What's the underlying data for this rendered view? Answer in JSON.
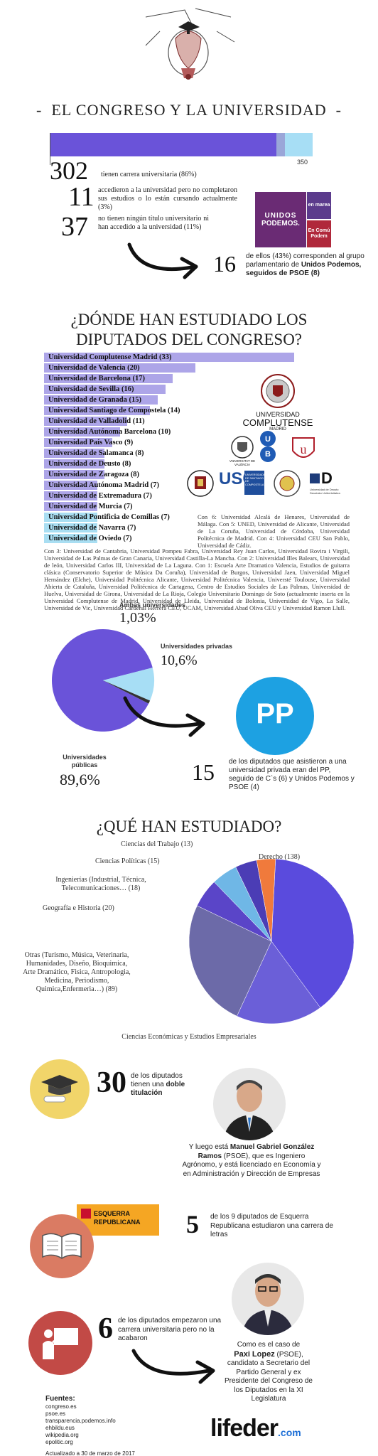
{
  "header": {
    "title": "EL CONGRESO Y LA UNIVERSIDAD"
  },
  "congress": {
    "scale_max": "350",
    "stats": [
      {
        "number": "302",
        "text": "tienen carrera universitaria (86%)"
      },
      {
        "number": "11",
        "text": "accedieron a la universidad pero no completaron sus estudios o lo están cursando actualmente (3%)"
      },
      {
        "number": "37",
        "text": "no tienen ningún título universitario ni han accedido a la universidad (11%)"
      }
    ],
    "podemos_number": "16",
    "podemos_text_pre": "de ellos (43%) corresponden al grupo parlamentario de ",
    "podemos_text_bold": "Unidos Podemos",
    "podemos_text_post": ", seguidos de PSOE (8)",
    "podemos_logo": {
      "line1": "UNIDOS",
      "line2": "PODEMOS.",
      "marea": "en marea",
      "comu": "En Comú Podem"
    },
    "bar_fraction_degree": 0.863,
    "bar_fraction_partial": 0.894
  },
  "where": {
    "title_line1": "¿DÓNDE HAN ESTUDIADO LOS",
    "title_line2": "DIPUTADOS DEL CONGRESO?",
    "universities": [
      {
        "name": "Universidad Complutense Madrid (33)",
        "value": 33
      },
      {
        "name": "Universidad de Valencia (20)",
        "value": 20
      },
      {
        "name": "Universidad de Barcelona (17)",
        "value": 17
      },
      {
        "name": "Universidad de Sevilla (16)",
        "value": 16
      },
      {
        "name": "Universidad de Granada (15)",
        "value": 15
      },
      {
        "name": "Universidad Santiago de Compostela (14)",
        "value": 14
      },
      {
        "name": "Universidad de Valladolid (11)",
        "value": 11
      },
      {
        "name": "Universidad Autónoma Barcelona (10)",
        "value": 10
      },
      {
        "name": "Universidad País Vasco (9)",
        "value": 9
      },
      {
        "name": "Universidad de Salamanca (8)",
        "value": 8
      },
      {
        "name": "Universidad de Deusto (8)",
        "value": 8
      },
      {
        "name": "Universidad de Zaragoza (8)",
        "value": 8
      },
      {
        "name": "Universidad Autónoma Madrid (7)",
        "value": 7
      },
      {
        "name": "Universidad de Extremadura (7)",
        "value": 7
      },
      {
        "name": "Universidad de Murcia (7)",
        "value": 7
      },
      {
        "name": "Universidad Pontificia de Comillas (7)",
        "value": 7
      },
      {
        "name": "Universidad de Navarra (7)",
        "value": 7
      },
      {
        "name": "Universidad de Oviedo (7)",
        "value": 7
      }
    ],
    "con6_text": "Con 6: Universidad Alcalá de Henares, Universidad de Málaga. Con 5: UNED, Universidad de Alicante, Universidad de La Coruña, Universidad de Córdoba, Universidad Politécnica de Madrid. Con 4: Universidad CEU San Pablo, Universidad de Cádiz.",
    "con3_text": "Con 3: Universidad de Cantabria, Universidad Pompeu Fabra, Universidad Rey Juan Carlos, Universidad Rovira i Virgili, Universidad de Las Palmas de Gran Canaria, Universidad Castilla-La Mancha. Con 2: Universidad Illes Balears, Universidad de león, Universidad Carlos III, Universidad de La Laguna. Con 1: Escuela Arte Dramatico Valencia, Estudios de guitarra clásica (Conservatorio Superior de Música Da Coruña), Universidad de Burgos, Universidad Jaen, Universidad Miguel Hernández (Elche), Universidad Politécnica Alicante, Universidad Politécnica Valencia, Universté Toulouse, Universidad Abierta de Cataluña, Universidad Politécnica de Cartagena, Centro de Estudios Sociales de Las Palmas, Universidad de Huelva, Universidad de Girona, Universidad de La Rioja, Colegio Universitario Domingo de Soto (actualmente inserta en la Universidad Complutense de Madrid, Universidad de Lleida, Universidad de Bolonia, Universidad de Vigo, La Salle, Universidad de Vic, Universidad Cardenal Herrera CEU, UCAM, Universidad Abad Oliva CEU y Universidad Ramon Llull.",
    "logos": {
      "complutense_line1": "UNIVERSIDAD",
      "complutense_line2": "COMPLUTENSE",
      "complutense_line3": "MADRID",
      "valencia": "VNIVERSITAT DE VALÈNCIA",
      "ub": "U B",
      "usc": "USC",
      "usc_sub": "UNIVERSIDADE DE SANTIAGO DE COMPOSTELA",
      "deusto_letter": "D",
      "deusto_sub": "Universidad de Deusto Deustuko Unibertsitatea"
    }
  },
  "pie1": {
    "label_both": "Ambas universidades",
    "value_both": "1,03%",
    "label_private": "Universidades privadas",
    "value_private": "10,6%",
    "label_public": "Universidades públicas",
    "value_public": "89,6%",
    "pp_number": "15",
    "pp_text": "de los diputados que asistieron a una universidad privada eran del PP, seguido de C`s (6) y Unidos Podemos y PSOE (4)",
    "pp_logo": "PP"
  },
  "studied": {
    "title": "¿QUÉ HAN ESTUDIADO?",
    "labels": {
      "trabajo": "Ciencias del Trabajo (13)",
      "politicas": "Ciencias Políticas (15)",
      "ingenierias": "Ingenierías (Industrial, Técnica, Telecomunicaciones… (18)",
      "geografia": "Geografía e Historia (20)",
      "otras": "Otras (Turismo, Música, Veterinaria, Humanidades, Diseño, Bioquimica, Arte Dramático, Fisica, Antropologia, Medicina, Periodismo, Quimica,Enfermeria…) (89)",
      "derecho": "Derecho (138)",
      "economicas": "Ciencias Económicas y Estudios Empresariales"
    }
  },
  "chart_data": {
    "type": "pie",
    "title": "¿QUÉ HAN ESTUDIADO?",
    "categories": [
      "Derecho",
      "Ciencias Económicas y Estudios Empresariales",
      "Otras",
      "Geografía e Historia",
      "Ingenierías",
      "Ciencias Políticas",
      "Ciencias del Trabajo"
    ],
    "values": [
      138,
      60,
      89,
      20,
      18,
      15,
      13
    ],
    "colors": [
      "#5a4bdd",
      "#6b5fd8",
      "#6c6aa8",
      "#5a45c8",
      "#6fb7e6",
      "#4b3db5",
      "#f07a3c"
    ]
  },
  "double": {
    "number": "30",
    "text_pre": "de los diputados tienen una",
    "text_bold": "doble titulación",
    "manuel_pre": "Y luego está ",
    "manuel_bold": "Manuel Gabriel González Ramos",
    "manuel_post": " (PSOE), que es Ingeniero Agrónomo, y está licenciado en Economía y en Administración y Dirección de Empresas"
  },
  "erc": {
    "logo_line1": "ESQUERRA",
    "logo_line2": "REPUBLICANA",
    "number": "5",
    "text": "de los 9 diputados de Esquerra Republicana estudiaron una carrera de letras"
  },
  "unfinished": {
    "number": "6",
    "text": "de los diputados empezaron una carrera universitaria pero no la acabaron",
    "paxi_pre": "Como es el caso de",
    "paxi_bold": "Paxi Lopez",
    "paxi_post": "(PSOE), candidato a Secretario del Partido General y ex Presidente del Congreso de los Diputados en la XI Legislatura"
  },
  "footer": {
    "sources_title": "Fuentes:",
    "sources": [
      "congreso.es",
      "psoe.es",
      "transparencia.podemos.info",
      "ehbildu.eus",
      "wikipedia.org",
      "epolitic.org"
    ],
    "updated": "Actualizado a 30 de marzo de 2017",
    "brand": "lifeder",
    "brand_suffix": ".com"
  }
}
